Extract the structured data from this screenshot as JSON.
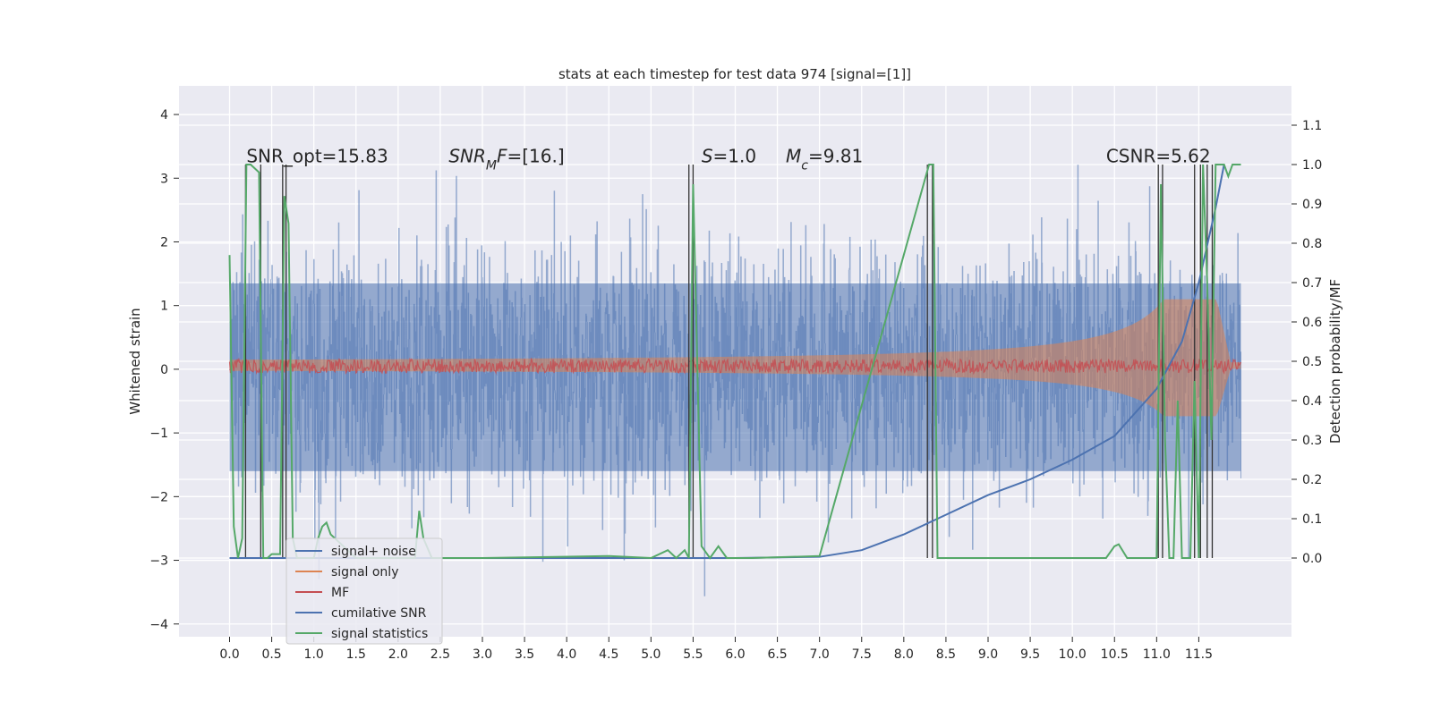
{
  "chart_data": {
    "type": "line",
    "title": "stats at each timestep for test data 974 [signal=[1]]",
    "ylabel": "Whitened strain",
    "ylabel_right": "Detection probability/MF",
    "xlim": [
      -0.6,
      12.6
    ],
    "ylim": [
      -4.2,
      4.45
    ],
    "ylim_right": [
      -0.2,
      1.2
    ],
    "x_ticks": [
      "0.0",
      "0.5",
      "1.0",
      "1.5",
      "2.0",
      "2.5",
      "3.0",
      "3.5",
      "4.0",
      "4.5",
      "5.0",
      "5.5",
      "6.0",
      "6.5",
      "7.0",
      "7.5",
      "8.0",
      "8.5",
      "9.0",
      "9.5",
      "10.0",
      "10.5",
      "11.0",
      "11.5"
    ],
    "y_ticks": [
      "−4",
      "−3",
      "−2",
      "−1",
      "0",
      "1",
      "2",
      "3",
      "4"
    ],
    "y_ticks_right": [
      "0.0",
      "0.1",
      "0.2",
      "0.3",
      "0.4",
      "0.5",
      "0.6",
      "0.7",
      "0.8",
      "0.9",
      "1.0",
      "1.1"
    ],
    "grid": true,
    "legend_position": "lower-left",
    "annotations": [
      {
        "text": "SNR_opt=15.83",
        "x": 0.2,
        "y": 3.25
      },
      {
        "text": "SNR_MF=[16.]",
        "x": 2.6,
        "y": 3.25
      },
      {
        "text": "S=1.0",
        "x": 5.6,
        "y": 3.25
      },
      {
        "text": "M_c=9.81",
        "x": 6.6,
        "y": 3.25
      },
      {
        "text": "CSNR=5.62",
        "x": 10.4,
        "y": 3.25
      }
    ],
    "series": [
      {
        "name": "signal+ noise",
        "color": "#4c72b0",
        "axis": "left",
        "style": "noise band, amplitude ~1.5 sigma from x=0 to 12"
      },
      {
        "name": "signal only",
        "color": "#dd8452",
        "axis": "left",
        "style": "chirp growing to ~1.0 near x=11.7"
      },
      {
        "name": "MF",
        "color": "#c44e52",
        "axis": "left",
        "style": "narrow band around 0.05"
      },
      {
        "name": "cumilative SNR",
        "color": "#4c72b0",
        "axis": "right",
        "x": [
          0,
          6.0,
          7.0,
          7.5,
          8.0,
          8.5,
          9.0,
          9.5,
          10.0,
          10.5,
          11.0,
          11.3,
          11.5,
          11.7,
          11.8
        ],
        "y": [
          0.0,
          0.0,
          0.003,
          0.02,
          0.06,
          0.11,
          0.16,
          0.2,
          0.25,
          0.31,
          0.43,
          0.55,
          0.7,
          0.89,
          1.0
        ]
      },
      {
        "name": "signal statistics",
        "color": "#55a868",
        "axis": "right",
        "x": [
          0,
          0.05,
          0.1,
          0.15,
          0.2,
          0.25,
          0.3,
          0.35,
          0.4,
          0.45,
          0.5,
          0.55,
          0.6,
          0.65,
          0.7,
          0.75,
          0.8,
          0.85,
          0.9,
          1.0,
          1.05,
          1.1,
          1.15,
          1.2,
          1.5,
          2.0,
          2.2,
          2.25,
          2.3,
          2.4,
          3.0,
          4.5,
          5.0,
          5.2,
          5.3,
          5.4,
          5.45,
          5.5,
          5.6,
          5.7,
          5.8,
          5.9,
          6.2,
          7.0,
          8.3,
          8.35,
          8.4,
          8.45,
          10.4,
          10.5,
          10.55,
          10.65,
          11.0,
          11.05,
          11.1,
          11.15,
          11.2,
          11.25,
          11.3,
          11.35,
          11.4,
          11.45,
          11.5,
          11.55,
          11.6,
          11.65,
          11.7,
          11.75,
          11.8,
          11.85,
          11.9,
          11.95,
          12.0
        ],
        "y": [
          0.77,
          0.08,
          0.0,
          0.05,
          1.0,
          1.0,
          0.99,
          0.98,
          0.0,
          0.0,
          0.01,
          0.01,
          0.01,
          0.92,
          0.85,
          0.05,
          0.0,
          0.0,
          0.0,
          0.0,
          0.05,
          0.08,
          0.09,
          0.06,
          0.0,
          0.0,
          0.0,
          0.12,
          0.05,
          0.0,
          0.0,
          0.005,
          0.0,
          0.02,
          0.0,
          0.02,
          0.0,
          0.95,
          0.03,
          0.0,
          0.03,
          0.0,
          0.0,
          0.005,
          1.0,
          1.0,
          0.0,
          0.0,
          0.0,
          0.03,
          0.035,
          0.0,
          0.0,
          0.95,
          0.3,
          0.0,
          0.0,
          0.4,
          0.0,
          0.0,
          0.0,
          0.45,
          0.0,
          1.0,
          0.7,
          0.3,
          1.0,
          1.0,
          1.0,
          0.97,
          1.0,
          1.0,
          1.0
        ]
      }
    ],
    "vertical_lines_x": [
      0.19,
      0.37,
      0.63,
      0.67,
      5.45,
      5.5,
      8.28,
      8.34,
      11.02,
      11.07,
      11.45,
      11.52,
      11.6,
      11.66
    ]
  }
}
